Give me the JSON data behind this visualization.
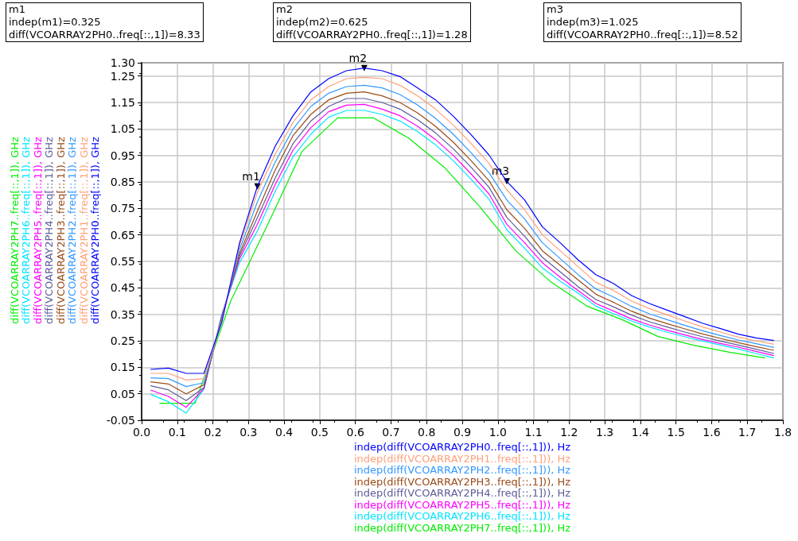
{
  "chart_data": {
    "type": "line",
    "marker": "none",
    "grid": true,
    "legend": "left",
    "xlabel": "indep(diff(VCOARRAY2PH0..freq[::,1])), Hz\nindep(diff(VCOARRAY2PH1..freq[::,1])), Hz\nindep(diff(VCOARRAY2PH2..freq[::,1])), Hz\nindep(diff(VCOARRAY2PH3..freq[::,1])), Hz\nindep(diff(VCOARRAY2PH4..freq[::,1])), Hz\nindep(diff(VCOARRAY2PH5..freq[::,1])), Hz\nindep(diff(VCOARRAY2PH6..freq[::,1])), Hz\nindep(diff(VCOARRAY2PH7..freq[::,1])), Hz",
    "xlim": [
      0,
      1.8
    ],
    "xticks": [
      {
        "value": 0,
        "label": "0.0"
      },
      0.1,
      0.2,
      0.3,
      0.4,
      0.5,
      0.6,
      0.7,
      0.8,
      0.9,
      {
        "value": 1,
        "label": "1.0"
      },
      1.1,
      1.2,
      1.3,
      1.4,
      1.5,
      1.6,
      1.7,
      1.8
    ],
    "ylim": [
      -0.05,
      1.3
    ],
    "yticks": [
      -0.05,
      0.05,
      0.15,
      0.25,
      0.35,
      0.45,
      0.55,
      0.65,
      0.75,
      0.85,
      0.95,
      1.05,
      1.15,
      1.25,
      {
        "value": 1.3,
        "label": "1.30"
      }
    ],
    "x": [
      0.025,
      0.075,
      0.125,
      0.175,
      0.225,
      0.275,
      0.325,
      0.375,
      0.425,
      0.475,
      0.525,
      0.575,
      0.625,
      0.675,
      0.725,
      0.775,
      0.825,
      0.875,
      0.925,
      0.975,
      1.025,
      1.075,
      1.125,
      1.175,
      1.225,
      1.275,
      1.325,
      1.375,
      1.425,
      1.475,
      1.525,
      1.575,
      1.625,
      1.675,
      1.725,
      1.775
    ],
    "annotations": [
      "m1\nindep(m1)=0.325\ndiff(VCOARRAY2PH0..freq[::,1])=8.33",
      "m2\nindep(m2)=0.625\ndiff(VCOARRAY2PH0..freq[::,1])=1.28",
      "m3\nindep(m3)=1.025\ndiff(VCOARRAY2PH0..freq[::,1])=8.52",
      {
        "text": "m1",
        "x": 0.325,
        "y": 0.833
      },
      {
        "text": "m2",
        "x": 0.625,
        "y": 1.28
      },
      {
        "text": "m3",
        "x": 1.025,
        "y": 0.852
      }
    ],
    "series": [
      {
        "name": "diff(VCOARRAY2PH0..freq[::,1]), GHz",
        "color": "#0000ff",
        "values": [
          0.142,
          0.147,
          0.127,
          0.127,
          0.32,
          0.62,
          0.833,
          0.985,
          1.1,
          1.19,
          1.24,
          1.27,
          1.28,
          1.27,
          1.248,
          1.205,
          1.16,
          1.098,
          1.028,
          0.952,
          0.852,
          0.782,
          0.68,
          0.62,
          0.556,
          0.5,
          0.466,
          0.421,
          0.391,
          0.366,
          0.341,
          0.316,
          0.296,
          0.275,
          0.261,
          0.251
        ]
      },
      {
        "name": "diff(VCOARRAY2PH1..freq[::,1]), GHz",
        "color": "#ffa07a",
        "values": [
          0.127,
          0.127,
          0.102,
          0.107,
          0.325,
          0.61,
          0.81,
          0.955,
          1.075,
          1.16,
          1.21,
          1.24,
          1.245,
          1.24,
          1.215,
          1.175,
          1.125,
          1.065,
          0.995,
          0.92,
          0.82,
          0.745,
          0.65,
          0.59,
          0.53,
          0.471,
          0.44,
          0.4,
          0.372,
          0.348,
          0.325,
          0.302,
          0.283,
          0.264,
          0.25,
          0.237
        ]
      },
      {
        "name": "diff(VCOARRAY2PH2..freq[::,1]), GHz",
        "color": "#3399ff",
        "values": [
          0.11,
          0.107,
          0.077,
          0.092,
          0.33,
          0.595,
          0.775,
          0.925,
          1.05,
          1.135,
          1.185,
          1.21,
          1.215,
          1.205,
          1.18,
          1.14,
          1.09,
          1.03,
          0.96,
          0.885,
          0.782,
          0.71,
          0.62,
          0.56,
          0.5,
          0.446,
          0.415,
          0.38,
          0.352,
          0.33,
          0.308,
          0.288,
          0.27,
          0.253,
          0.239,
          0.225
        ]
      },
      {
        "name": "diff(VCOARRAY2PH3..freq[::,1]), GHz",
        "color": "#994c19",
        "values": [
          0.095,
          0.087,
          0.05,
          0.084,
          0.335,
          0.58,
          0.74,
          0.895,
          1.025,
          1.105,
          1.16,
          1.185,
          1.19,
          1.175,
          1.15,
          1.11,
          1.06,
          1.0,
          0.93,
          0.855,
          0.745,
          0.675,
          0.59,
          0.535,
          0.48,
          0.426,
          0.395,
          0.362,
          0.336,
          0.315,
          0.295,
          0.276,
          0.259,
          0.243,
          0.228,
          0.214
        ]
      },
      {
        "name": "diff(VCOARRAY2PH4..freq[::,1]), GHz",
        "color": "#5c5c99",
        "values": [
          0.08,
          0.065,
          0.024,
          0.074,
          0.34,
          0.57,
          0.715,
          0.865,
          0.995,
          1.08,
          1.135,
          1.165,
          1.165,
          1.15,
          1.125,
          1.085,
          1.035,
          0.975,
          0.905,
          0.83,
          0.716,
          0.645,
          0.565,
          0.51,
          0.455,
          0.406,
          0.378,
          0.347,
          0.322,
          0.302,
          0.283,
          0.265,
          0.249,
          0.234,
          0.218,
          0.202
        ]
      },
      {
        "name": "diff(VCOARRAY2PH5..freq[::,1]), GHz",
        "color": "#ff00ff",
        "values": [
          0.064,
          0.04,
          -0.001,
          0.07,
          0.345,
          0.56,
          0.69,
          0.84,
          0.97,
          1.055,
          1.115,
          1.14,
          1.143,
          1.125,
          1.1,
          1.06,
          1.01,
          0.95,
          0.88,
          0.805,
          0.69,
          0.62,
          0.545,
          0.49,
          0.44,
          0.391,
          0.362,
          0.333,
          0.31,
          0.29,
          0.272,
          0.255,
          0.24,
          0.226,
          0.21,
          0.194
        ]
      },
      {
        "name": "diff(VCOARRAY2PH6..freq[::,1]), GHz",
        "color": "#00e5ff",
        "values": [
          0.048,
          0.02,
          -0.023,
          0.068,
          0.35,
          0.545,
          0.665,
          0.815,
          0.945,
          1.03,
          1.095,
          1.12,
          1.12,
          1.105,
          1.08,
          1.04,
          0.99,
          0.93,
          0.86,
          0.785,
          0.67,
          0.6,
          0.525,
          0.475,
          0.43,
          0.381,
          0.352,
          0.325,
          0.302,
          0.283,
          0.265,
          0.249,
          0.234,
          0.219,
          0.202,
          0.185
        ]
      },
      {
        "name": "diff(VCOARRAY2PH7..freq[::,1]), GHz",
        "color": "#00ee00",
        "x": [
          0.05,
          0.15,
          0.25,
          0.35,
          0.45,
          0.55,
          0.65,
          0.75,
          0.85,
          0.95,
          1.05,
          1.15,
          1.25,
          1.35,
          1.45,
          1.55,
          1.65,
          1.75
        ],
        "values": [
          0.014,
          0.014,
          0.4,
          0.678,
          0.965,
          1.092,
          1.092,
          1.015,
          0.905,
          0.755,
          0.59,
          0.471,
          0.381,
          0.329,
          0.266,
          0.233,
          0.207,
          0.185
        ]
      }
    ]
  }
}
